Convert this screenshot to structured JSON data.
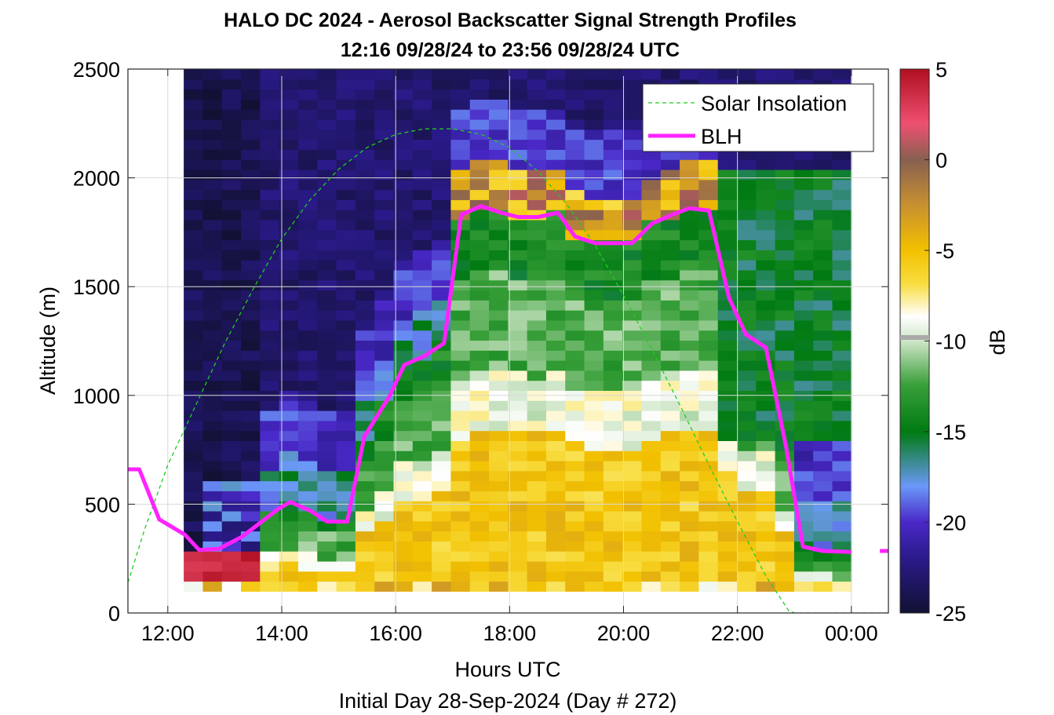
{
  "chart_data": {
    "type": "heatmap",
    "title_line1": "HALO DC 2024 - Aerosol Backscatter Signal Strength Profiles",
    "title_line2": "12:16 09/28/24 to 23:56 09/28/24  UTC",
    "xlabel": "Hours UTC",
    "xlabel2": "Initial Day 28-Sep-2024 (Day # 272)",
    "ylabel": "Altitude (m)",
    "colorbar_label": "dB",
    "xlim_hours": [
      11.3,
      24.65
    ],
    "ylim": [
      0,
      2500
    ],
    "x_ticks": [
      {
        "v": 12,
        "label": "12:00"
      },
      {
        "v": 14,
        "label": "14:00"
      },
      {
        "v": 16,
        "label": "16:00"
      },
      {
        "v": 18,
        "label": "18:00"
      },
      {
        "v": 20,
        "label": "20:00"
      },
      {
        "v": 22,
        "label": "22:00"
      },
      {
        "v": 24,
        "label": "00:00"
      }
    ],
    "y_ticks": [
      0,
      500,
      1000,
      1500,
      2000,
      2500
    ],
    "colorbar_range": [
      -25,
      5
    ],
    "colorbar_ticks": [
      5,
      0,
      -5,
      -10,
      -15,
      -20,
      -25
    ],
    "grid": true,
    "legend_position": "top-right",
    "colors": {
      "solar": "#22cc22",
      "blh": "#ff22ff",
      "grid": "#d9d9d9"
    },
    "heatmap": {
      "time_start": 12.28,
      "time_end": 24.0,
      "time_bins": 35,
      "alt_start": 100,
      "alt_end": 2500,
      "alt_bins": 52
    },
    "series": [
      {
        "name": "Solar Insolation",
        "style": "dashed",
        "x": [
          11.3,
          11.6,
          12.0,
          12.5,
          13.0,
          13.5,
          14.0,
          14.5,
          15.0,
          15.5,
          16.0,
          16.5,
          17.0,
          17.5,
          18.0,
          18.5,
          19.0,
          19.5,
          20.0,
          20.5,
          21.0,
          21.5,
          22.0,
          22.5,
          22.9,
          23.0,
          23.5,
          24.0,
          24.65
        ],
        "y": [
          140,
          390,
          680,
          960,
          1240,
          1490,
          1720,
          1900,
          2040,
          2140,
          2200,
          2225,
          2225,
          2200,
          2140,
          2030,
          1880,
          1690,
          1460,
          1210,
          950,
          680,
          420,
          170,
          10,
          0,
          0,
          0,
          0
        ]
      },
      {
        "name": "BLH",
        "style": "solid",
        "x": [
          11.3,
          11.5,
          11.85,
          12.3,
          12.55,
          12.9,
          13.3,
          13.65,
          13.95,
          14.15,
          14.5,
          14.8,
          15.15,
          15.45,
          15.9,
          16.15,
          16.5,
          16.85,
          17.15,
          17.5,
          17.85,
          18.15,
          18.5,
          18.85,
          19.15,
          19.5,
          19.85,
          20.15,
          20.5,
          20.85,
          21.15,
          21.5,
          21.85,
          22.15,
          22.5,
          22.85,
          23.15,
          23.5,
          24.0
        ],
        "y": [
          660,
          660,
          430,
          360,
          290,
          295,
          350,
          420,
          480,
          510,
          470,
          420,
          420,
          810,
          1000,
          1140,
          1180,
          1240,
          1830,
          1870,
          1840,
          1820,
          1820,
          1840,
          1730,
          1700,
          1700,
          1700,
          1790,
          1830,
          1860,
          1850,
          1450,
          1280,
          1220,
          770,
          305,
          285,
          280
        ],
        "extra_segment_x": [
          24.5,
          24.65
        ],
        "extra_segment_y": [
          285,
          285
        ]
      }
    ]
  }
}
